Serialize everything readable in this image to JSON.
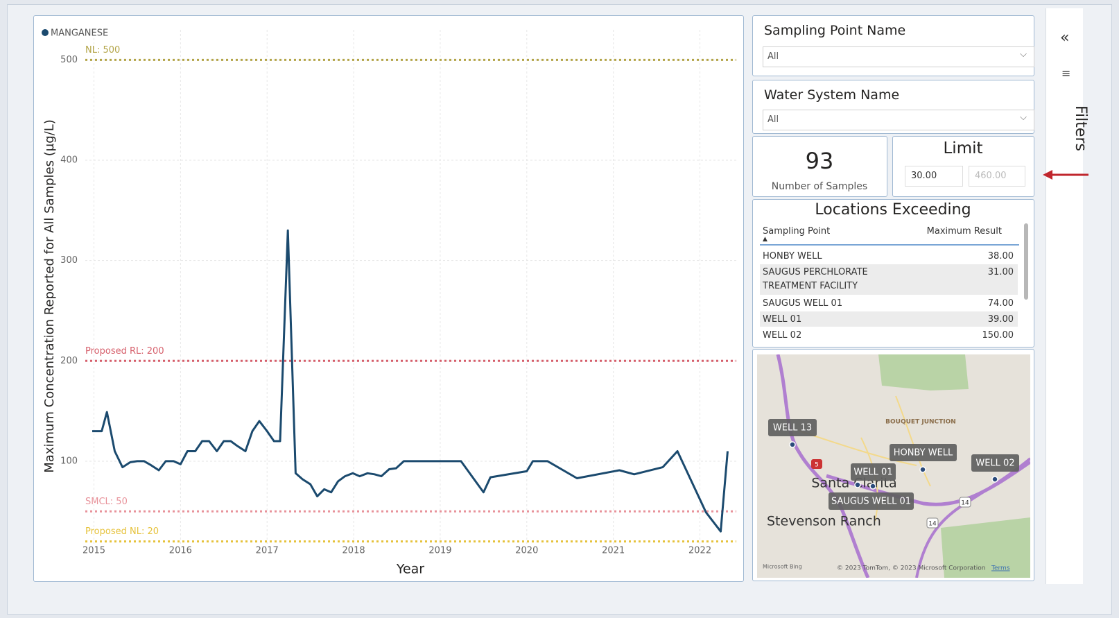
{
  "chart_data": {
    "type": "line",
    "x_label": "Year",
    "y_label": "Maximum Concentration Reported for All Samples (µg/L)",
    "legend_position": "top-left",
    "grid": true,
    "xlim": [
      2014.9,
      2022.42
    ],
    "xticks": [
      2015,
      2016,
      2017,
      2018,
      2019,
      2020,
      2021,
      2022
    ],
    "ylim": [
      17,
      530
    ],
    "yticks": [
      100,
      200,
      300,
      400,
      500
    ],
    "x": [
      2014.98,
      2015.09,
      2015.15,
      2015.24,
      2015.33,
      2015.42,
      2015.5,
      2015.58,
      2015.66,
      2015.75,
      2015.83,
      2015.92,
      2016.0,
      2016.08,
      2016.17,
      2016.25,
      2016.33,
      2016.42,
      2016.5,
      2016.58,
      2016.66,
      2016.75,
      2016.83,
      2016.91,
      2017.0,
      2017.08,
      2017.15,
      2017.24,
      2017.33,
      2017.41,
      2017.5,
      2017.58,
      2017.66,
      2017.74,
      2017.82,
      2017.9,
      2017.99,
      2018.07,
      2018.16,
      2018.24,
      2018.32,
      2018.41,
      2018.49,
      2018.58,
      2019.24,
      2019.5,
      2019.58,
      2020.0,
      2020.07,
      2020.24,
      2020.58,
      2021.07,
      2021.24,
      2021.57,
      2021.74,
      2022.07,
      2022.24,
      2022.32
    ],
    "series": [
      {
        "name": "MANGANESE",
        "color": "#1b4a6e",
        "values": [
          130,
          130,
          149,
          110,
          94,
          99,
          100,
          100,
          96,
          91,
          100,
          100,
          97,
          110,
          110,
          120,
          120,
          110,
          120,
          120,
          115,
          110,
          130,
          140,
          130,
          120,
          120,
          330,
          88,
          82,
          77,
          65,
          72,
          69,
          80,
          85,
          88,
          85,
          88,
          87,
          85,
          92,
          93,
          100,
          100,
          69,
          84,
          90,
          100,
          100,
          83,
          91,
          87,
          94,
          110,
          49,
          30,
          110
        ]
      }
    ],
    "reference_lines": [
      {
        "label": "NL: 500",
        "value": 500,
        "color": "#b3a447"
      },
      {
        "label": "Proposed RL: 200",
        "value": 200,
        "color": "#d65f6b"
      },
      {
        "label": "SMCL: 50",
        "value": 50,
        "color": "#e8939b"
      },
      {
        "label": "Proposed NL: 20",
        "value": 20,
        "color": "#e6c23c"
      }
    ]
  },
  "slicers": [
    {
      "title": "Sampling Point Name",
      "selection": "All"
    },
    {
      "title": "Water System Name",
      "selection": "All"
    }
  ],
  "card": {
    "value": 93,
    "label": "Number of Samples"
  },
  "limit": {
    "title": "Limit",
    "min": "30.00",
    "max": "460.00"
  },
  "table": {
    "title": "Locations Exceeding",
    "columns": [
      "Sampling Point",
      "Maximum Result"
    ],
    "rows": [
      [
        "HONBY WELL",
        "38.00"
      ],
      [
        "SAUGUS PERCHLORATE TREATMENT FACILITY",
        "31.00"
      ],
      [
        "SAUGUS WELL 01",
        "74.00"
      ],
      [
        "WELL 01",
        "39.00"
      ],
      [
        "WELL 02",
        "150.00"
      ]
    ]
  },
  "map": {
    "labels": [
      "WELL 13",
      "HONBY WELL",
      "WELL 01",
      "WELL 02",
      "SAUGUS WELL 01"
    ],
    "places": [
      "Santa Clarita",
      "Stevenson Ranch",
      "BOUQUET JUNCTION"
    ],
    "road_shields": [
      "5",
      "14",
      "14"
    ],
    "attribution": "© 2023 TomTom, © 2023 Microsoft Corporation",
    "terms": "Terms",
    "provider": "Microsoft Bing"
  },
  "filters_pane": {
    "title": "Filters"
  }
}
